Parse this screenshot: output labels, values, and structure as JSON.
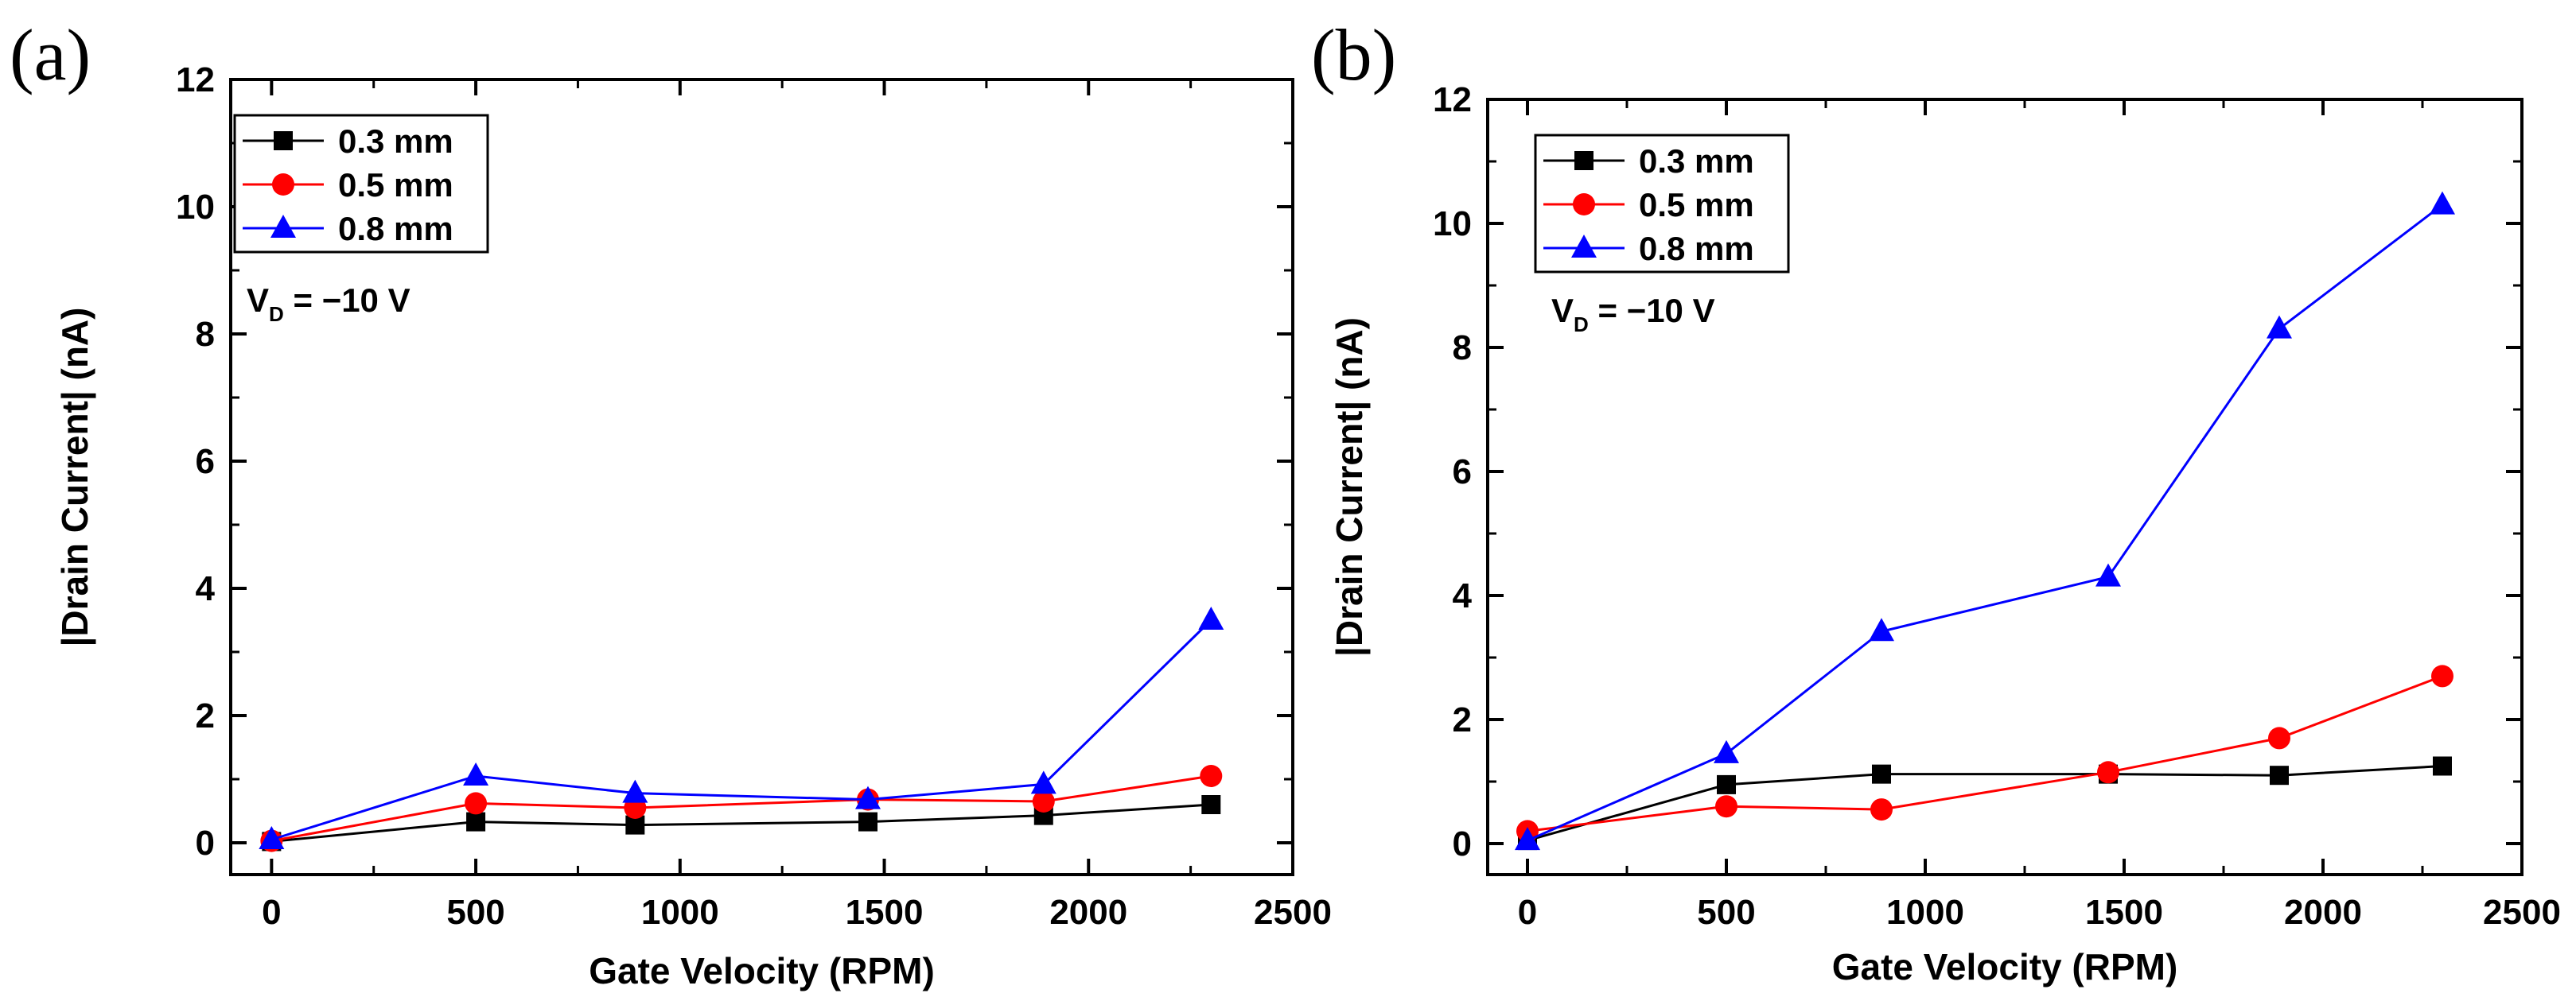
{
  "chart_data": [
    {
      "type": "line",
      "panel_label": "(a)",
      "xlabel": "Gate Velocity (RPM)",
      "ylabel": "|Drain Current| (nA)",
      "xlim": [
        -100,
        2500
      ],
      "ylim": [
        -0.5,
        12
      ],
      "xticks": [
        "0",
        "500",
        "1000",
        "1500",
        "2000",
        "2500"
      ],
      "yticks": [
        "0",
        "2",
        "4",
        "6",
        "8",
        "10",
        "12"
      ],
      "legend_position": "top-left",
      "annotation": {
        "main": "V",
        "sub": "D",
        "rest": " = −10 V"
      },
      "series": [
        {
          "name": "0.3 mm",
          "color": "#000000",
          "marker": "square",
          "x": [
            0,
            500,
            890,
            1460,
            1890,
            2300
          ],
          "y": [
            0.02,
            0.33,
            0.28,
            0.33,
            0.43,
            0.6
          ]
        },
        {
          "name": "0.5 mm",
          "color": "#ff0000",
          "marker": "circle",
          "x": [
            0,
            500,
            890,
            1460,
            1890,
            2300
          ],
          "y": [
            0.03,
            0.62,
            0.55,
            0.68,
            0.65,
            1.05
          ]
        },
        {
          "name": "0.8 mm",
          "color": "#0000ff",
          "marker": "triangle",
          "x": [
            0,
            500,
            890,
            1460,
            1890,
            2300
          ],
          "y": [
            0.05,
            1.05,
            0.78,
            0.68,
            0.92,
            3.5
          ]
        }
      ]
    },
    {
      "type": "line",
      "panel_label": "(b)",
      "xlabel": "Gate Velocity (RPM)",
      "ylabel": "|Drain Current| (nA)",
      "xlim": [
        -100,
        2500
      ],
      "ylim": [
        -0.5,
        12
      ],
      "xticks": [
        "0",
        "500",
        "1000",
        "1500",
        "2000",
        "2500"
      ],
      "yticks": [
        "0",
        "2",
        "4",
        "6",
        "8",
        "10",
        "12"
      ],
      "legend_position": "top-left",
      "annotation": {
        "main": "V",
        "sub": "D",
        "rest": " = −10 V"
      },
      "series": [
        {
          "name": "0.3 mm",
          "color": "#000000",
          "marker": "square",
          "x": [
            0,
            500,
            890,
            1460,
            1890,
            2300
          ],
          "y": [
            0.05,
            0.95,
            1.12,
            1.12,
            1.1,
            1.25
          ]
        },
        {
          "name": "0.5 mm",
          "color": "#ff0000",
          "marker": "circle",
          "x": [
            0,
            500,
            890,
            1460,
            1890,
            2300
          ],
          "y": [
            0.2,
            0.6,
            0.55,
            1.15,
            1.7,
            2.7
          ]
        },
        {
          "name": "0.8 mm",
          "color": "#0000ff",
          "marker": "triangle",
          "x": [
            0,
            500,
            890,
            1460,
            1890,
            2300
          ],
          "y": [
            0.05,
            1.45,
            3.42,
            4.3,
            8.3,
            10.3
          ]
        }
      ]
    }
  ]
}
